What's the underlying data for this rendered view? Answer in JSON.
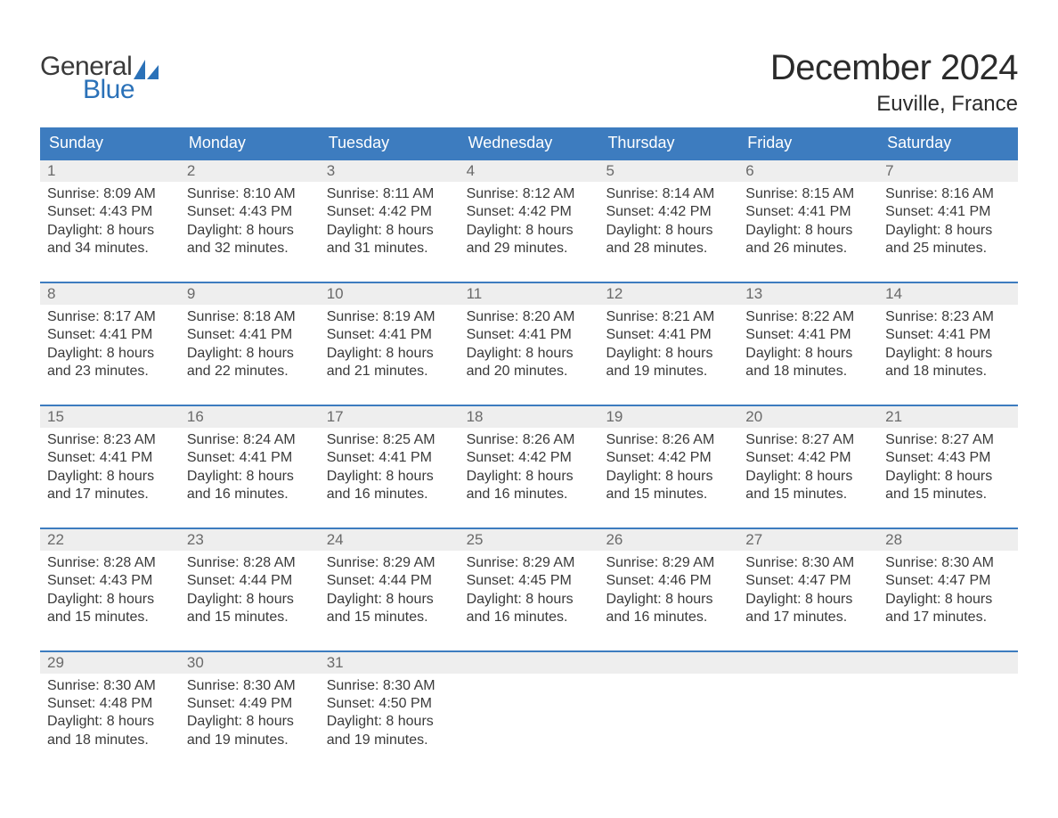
{
  "logo": {
    "word1": "General",
    "word2": "Blue",
    "accent_color": "#2a71b8",
    "text_color": "#3a3a3a"
  },
  "title": "December 2024",
  "location": "Euville, France",
  "colors": {
    "header_bg": "#3d7cbf",
    "header_text": "#ffffff",
    "daynum_bg": "#eeeeee",
    "daynum_text": "#6a6a6a",
    "body_text": "#3a3a3a",
    "week_border": "#3d7cbf",
    "background": "#ffffff"
  },
  "typography": {
    "title_fontsize": 40,
    "location_fontsize": 24,
    "dayname_fontsize": 18,
    "daynum_fontsize": 17,
    "cell_fontsize": 16,
    "logo_fontsize": 30,
    "font_family": "Arial"
  },
  "daynames": [
    "Sunday",
    "Monday",
    "Tuesday",
    "Wednesday",
    "Thursday",
    "Friday",
    "Saturday"
  ],
  "weeks": [
    [
      {
        "n": "1",
        "sunrise": "Sunrise: 8:09 AM",
        "sunset": "Sunset: 4:43 PM",
        "dl1": "Daylight: 8 hours",
        "dl2": "and 34 minutes."
      },
      {
        "n": "2",
        "sunrise": "Sunrise: 8:10 AM",
        "sunset": "Sunset: 4:43 PM",
        "dl1": "Daylight: 8 hours",
        "dl2": "and 32 minutes."
      },
      {
        "n": "3",
        "sunrise": "Sunrise: 8:11 AM",
        "sunset": "Sunset: 4:42 PM",
        "dl1": "Daylight: 8 hours",
        "dl2": "and 31 minutes."
      },
      {
        "n": "4",
        "sunrise": "Sunrise: 8:12 AM",
        "sunset": "Sunset: 4:42 PM",
        "dl1": "Daylight: 8 hours",
        "dl2": "and 29 minutes."
      },
      {
        "n": "5",
        "sunrise": "Sunrise: 8:14 AM",
        "sunset": "Sunset: 4:42 PM",
        "dl1": "Daylight: 8 hours",
        "dl2": "and 28 minutes."
      },
      {
        "n": "6",
        "sunrise": "Sunrise: 8:15 AM",
        "sunset": "Sunset: 4:41 PM",
        "dl1": "Daylight: 8 hours",
        "dl2": "and 26 minutes."
      },
      {
        "n": "7",
        "sunrise": "Sunrise: 8:16 AM",
        "sunset": "Sunset: 4:41 PM",
        "dl1": "Daylight: 8 hours",
        "dl2": "and 25 minutes."
      }
    ],
    [
      {
        "n": "8",
        "sunrise": "Sunrise: 8:17 AM",
        "sunset": "Sunset: 4:41 PM",
        "dl1": "Daylight: 8 hours",
        "dl2": "and 23 minutes."
      },
      {
        "n": "9",
        "sunrise": "Sunrise: 8:18 AM",
        "sunset": "Sunset: 4:41 PM",
        "dl1": "Daylight: 8 hours",
        "dl2": "and 22 minutes."
      },
      {
        "n": "10",
        "sunrise": "Sunrise: 8:19 AM",
        "sunset": "Sunset: 4:41 PM",
        "dl1": "Daylight: 8 hours",
        "dl2": "and 21 minutes."
      },
      {
        "n": "11",
        "sunrise": "Sunrise: 8:20 AM",
        "sunset": "Sunset: 4:41 PM",
        "dl1": "Daylight: 8 hours",
        "dl2": "and 20 minutes."
      },
      {
        "n": "12",
        "sunrise": "Sunrise: 8:21 AM",
        "sunset": "Sunset: 4:41 PM",
        "dl1": "Daylight: 8 hours",
        "dl2": "and 19 minutes."
      },
      {
        "n": "13",
        "sunrise": "Sunrise: 8:22 AM",
        "sunset": "Sunset: 4:41 PM",
        "dl1": "Daylight: 8 hours",
        "dl2": "and 18 minutes."
      },
      {
        "n": "14",
        "sunrise": "Sunrise: 8:23 AM",
        "sunset": "Sunset: 4:41 PM",
        "dl1": "Daylight: 8 hours",
        "dl2": "and 18 minutes."
      }
    ],
    [
      {
        "n": "15",
        "sunrise": "Sunrise: 8:23 AM",
        "sunset": "Sunset: 4:41 PM",
        "dl1": "Daylight: 8 hours",
        "dl2": "and 17 minutes."
      },
      {
        "n": "16",
        "sunrise": "Sunrise: 8:24 AM",
        "sunset": "Sunset: 4:41 PM",
        "dl1": "Daylight: 8 hours",
        "dl2": "and 16 minutes."
      },
      {
        "n": "17",
        "sunrise": "Sunrise: 8:25 AM",
        "sunset": "Sunset: 4:41 PM",
        "dl1": "Daylight: 8 hours",
        "dl2": "and 16 minutes."
      },
      {
        "n": "18",
        "sunrise": "Sunrise: 8:26 AM",
        "sunset": "Sunset: 4:42 PM",
        "dl1": "Daylight: 8 hours",
        "dl2": "and 16 minutes."
      },
      {
        "n": "19",
        "sunrise": "Sunrise: 8:26 AM",
        "sunset": "Sunset: 4:42 PM",
        "dl1": "Daylight: 8 hours",
        "dl2": "and 15 minutes."
      },
      {
        "n": "20",
        "sunrise": "Sunrise: 8:27 AM",
        "sunset": "Sunset: 4:42 PM",
        "dl1": "Daylight: 8 hours",
        "dl2": "and 15 minutes."
      },
      {
        "n": "21",
        "sunrise": "Sunrise: 8:27 AM",
        "sunset": "Sunset: 4:43 PM",
        "dl1": "Daylight: 8 hours",
        "dl2": "and 15 minutes."
      }
    ],
    [
      {
        "n": "22",
        "sunrise": "Sunrise: 8:28 AM",
        "sunset": "Sunset: 4:43 PM",
        "dl1": "Daylight: 8 hours",
        "dl2": "and 15 minutes."
      },
      {
        "n": "23",
        "sunrise": "Sunrise: 8:28 AM",
        "sunset": "Sunset: 4:44 PM",
        "dl1": "Daylight: 8 hours",
        "dl2": "and 15 minutes."
      },
      {
        "n": "24",
        "sunrise": "Sunrise: 8:29 AM",
        "sunset": "Sunset: 4:44 PM",
        "dl1": "Daylight: 8 hours",
        "dl2": "and 15 minutes."
      },
      {
        "n": "25",
        "sunrise": "Sunrise: 8:29 AM",
        "sunset": "Sunset: 4:45 PM",
        "dl1": "Daylight: 8 hours",
        "dl2": "and 16 minutes."
      },
      {
        "n": "26",
        "sunrise": "Sunrise: 8:29 AM",
        "sunset": "Sunset: 4:46 PM",
        "dl1": "Daylight: 8 hours",
        "dl2": "and 16 minutes."
      },
      {
        "n": "27",
        "sunrise": "Sunrise: 8:30 AM",
        "sunset": "Sunset: 4:47 PM",
        "dl1": "Daylight: 8 hours",
        "dl2": "and 17 minutes."
      },
      {
        "n": "28",
        "sunrise": "Sunrise: 8:30 AM",
        "sunset": "Sunset: 4:47 PM",
        "dl1": "Daylight: 8 hours",
        "dl2": "and 17 minutes."
      }
    ],
    [
      {
        "n": "29",
        "sunrise": "Sunrise: 8:30 AM",
        "sunset": "Sunset: 4:48 PM",
        "dl1": "Daylight: 8 hours",
        "dl2": "and 18 minutes."
      },
      {
        "n": "30",
        "sunrise": "Sunrise: 8:30 AM",
        "sunset": "Sunset: 4:49 PM",
        "dl1": "Daylight: 8 hours",
        "dl2": "and 19 minutes."
      },
      {
        "n": "31",
        "sunrise": "Sunrise: 8:30 AM",
        "sunset": "Sunset: 4:50 PM",
        "dl1": "Daylight: 8 hours",
        "dl2": "and 19 minutes."
      },
      {
        "empty": true
      },
      {
        "empty": true
      },
      {
        "empty": true
      },
      {
        "empty": true
      }
    ]
  ]
}
